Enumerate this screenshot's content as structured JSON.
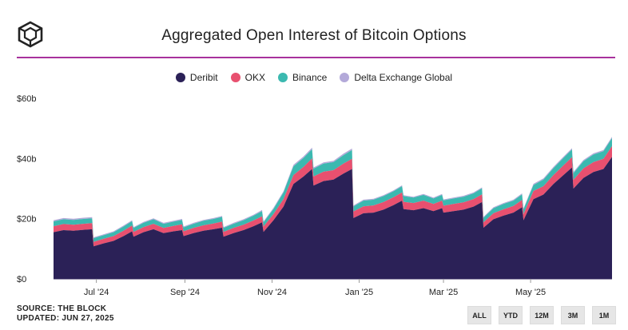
{
  "header": {
    "title": "Aggregated Open Interest of Bitcoin Options",
    "logo_icon": "the-block-cube-logo-icon"
  },
  "colors": {
    "accent_rule": "#a8329d"
  },
  "footer": {
    "source": "SOURCE: THE BLOCK",
    "updated": "UPDATED: JUN 27, 2025"
  },
  "range_buttons": [
    {
      "label": "ALL"
    },
    {
      "label": "YTD"
    },
    {
      "label": "12M"
    },
    {
      "label": "3M"
    },
    {
      "label": "1M"
    }
  ],
  "chart_data": {
    "type": "area",
    "stacked": true,
    "title": "Aggregated Open Interest of Bitcoin Options",
    "xlabel": "",
    "ylabel": "",
    "legend_position": "top-center",
    "grid": false,
    "ylim": [
      0,
      60
    ],
    "y_ticks": [
      {
        "value": 0,
        "label": "$0"
      },
      {
        "value": 20,
        "label": "$20b"
      },
      {
        "value": 40,
        "label": "$40b"
      },
      {
        "value": 60,
        "label": "$60b"
      }
    ],
    "x_ticks": [
      {
        "date": "2024-07-01",
        "label": "Jul '24"
      },
      {
        "date": "2024-09-01",
        "label": "Sep '24"
      },
      {
        "date": "2024-11-01",
        "label": "Nov '24"
      },
      {
        "date": "2025-01-01",
        "label": "Jan '25"
      },
      {
        "date": "2025-03-01",
        "label": "Mar '25"
      },
      {
        "date": "2025-05-01",
        "label": "May '25"
      }
    ],
    "x": [
      "2024-06-01",
      "2024-06-08",
      "2024-06-15",
      "2024-06-22",
      "2024-06-28",
      "2024-06-29",
      "2024-07-06",
      "2024-07-13",
      "2024-07-20",
      "2024-07-26",
      "2024-07-27",
      "2024-08-03",
      "2024-08-10",
      "2024-08-17",
      "2024-08-24",
      "2024-08-30",
      "2024-08-31",
      "2024-09-07",
      "2024-09-14",
      "2024-09-21",
      "2024-09-27",
      "2024-09-28",
      "2024-10-05",
      "2024-10-12",
      "2024-10-19",
      "2024-10-25",
      "2024-10-26",
      "2024-11-02",
      "2024-11-09",
      "2024-11-16",
      "2024-11-23",
      "2024-11-29",
      "2024-11-30",
      "2024-12-07",
      "2024-12-14",
      "2024-12-21",
      "2024-12-27",
      "2024-12-28",
      "2025-01-04",
      "2025-01-11",
      "2025-01-18",
      "2025-01-25",
      "2025-01-31",
      "2025-02-01",
      "2025-02-08",
      "2025-02-15",
      "2025-02-22",
      "2025-02-28",
      "2025-03-01",
      "2025-03-08",
      "2025-03-15",
      "2025-03-22",
      "2025-03-28",
      "2025-03-29",
      "2025-04-05",
      "2025-04-12",
      "2025-04-19",
      "2025-04-25",
      "2025-04-26",
      "2025-05-03",
      "2025-05-10",
      "2025-05-17",
      "2025-05-24",
      "2025-05-30",
      "2025-05-31",
      "2025-06-07",
      "2025-06-14",
      "2025-06-21",
      "2025-06-27"
    ],
    "series": [
      {
        "name": "Deribit",
        "color": "#2b2157",
        "values": [
          15.5,
          16.2,
          16.0,
          16.3,
          16.5,
          10.8,
          11.8,
          12.6,
          14.2,
          15.8,
          14.0,
          15.5,
          16.5,
          15.2,
          15.8,
          16.2,
          14.2,
          15.2,
          16.0,
          16.5,
          17.0,
          14.0,
          15.2,
          16.2,
          17.5,
          18.8,
          15.6,
          19.5,
          24.0,
          31.5,
          34.0,
          36.5,
          31.0,
          32.5,
          33.0,
          35.0,
          36.5,
          20.2,
          21.8,
          22.0,
          23.0,
          24.5,
          26.0,
          23.2,
          22.8,
          23.5,
          22.5,
          23.5,
          22.0,
          22.5,
          23.0,
          24.0,
          25.5,
          17.0,
          19.8,
          21.0,
          22.0,
          23.8,
          19.5,
          26.5,
          28.0,
          31.5,
          34.5,
          37.0,
          30.0,
          33.5,
          35.5,
          36.5,
          40.5
        ]
      },
      {
        "name": "OKX",
        "color": "#e8506f",
        "values": [
          2.0,
          2.0,
          2.0,
          2.0,
          2.0,
          1.5,
          1.5,
          1.6,
          1.8,
          1.9,
          1.6,
          1.7,
          1.8,
          1.7,
          1.8,
          1.9,
          1.6,
          1.7,
          1.8,
          1.9,
          2.0,
          1.6,
          1.7,
          1.8,
          1.9,
          2.0,
          1.8,
          2.0,
          2.5,
          3.0,
          3.2,
          3.5,
          3.0,
          3.1,
          3.1,
          3.3,
          3.4,
          2.2,
          2.3,
          2.4,
          2.5,
          2.6,
          2.7,
          2.4,
          2.4,
          2.5,
          2.4,
          2.5,
          2.3,
          2.4,
          2.4,
          2.5,
          2.6,
          1.8,
          2.0,
          2.1,
          2.2,
          2.4,
          2.0,
          2.7,
          2.8,
          3.0,
          3.2,
          3.4,
          2.9,
          3.2,
          3.3,
          3.4,
          3.6
        ]
      },
      {
        "name": "Binance",
        "color": "#3bb9b0",
        "values": [
          1.6,
          1.6,
          1.6,
          1.6,
          1.6,
          1.2,
          1.2,
          1.3,
          1.4,
          1.5,
          1.3,
          1.4,
          1.5,
          1.4,
          1.4,
          1.5,
          1.3,
          1.4,
          1.5,
          1.5,
          1.6,
          1.3,
          1.4,
          1.5,
          1.6,
          1.7,
          1.4,
          1.7,
          2.2,
          2.9,
          3.0,
          3.1,
          2.6,
          2.7,
          2.7,
          2.8,
          2.9,
          1.7,
          1.9,
          1.9,
          2.0,
          2.0,
          2.1,
          1.9,
          1.8,
          1.9,
          1.8,
          1.9,
          1.8,
          1.8,
          1.9,
          1.9,
          2.0,
          1.5,
          1.7,
          1.8,
          1.8,
          1.9,
          1.6,
          2.0,
          2.2,
          2.3,
          2.5,
          2.6,
          2.2,
          2.4,
          2.5,
          2.5,
          2.7
        ]
      },
      {
        "name": "Delta Exchange Global",
        "color": "#b3a9d9",
        "values": [
          0.4,
          0.4,
          0.4,
          0.4,
          0.4,
          0.3,
          0.3,
          0.3,
          0.3,
          0.3,
          0.3,
          0.3,
          0.3,
          0.3,
          0.3,
          0.3,
          0.3,
          0.3,
          0.3,
          0.3,
          0.3,
          0.3,
          0.3,
          0.3,
          0.3,
          0.4,
          0.3,
          0.4,
          0.4,
          0.5,
          0.5,
          0.5,
          0.4,
          0.4,
          0.4,
          0.5,
          0.5,
          0.3,
          0.3,
          0.3,
          0.3,
          0.3,
          0.3,
          0.3,
          0.3,
          0.3,
          0.3,
          0.3,
          0.3,
          0.3,
          0.3,
          0.3,
          0.3,
          0.3,
          0.3,
          0.3,
          0.3,
          0.3,
          0.3,
          0.4,
          0.4,
          0.4,
          0.4,
          0.4,
          0.4,
          0.4,
          0.4,
          0.4,
          0.4
        ]
      }
    ]
  }
}
